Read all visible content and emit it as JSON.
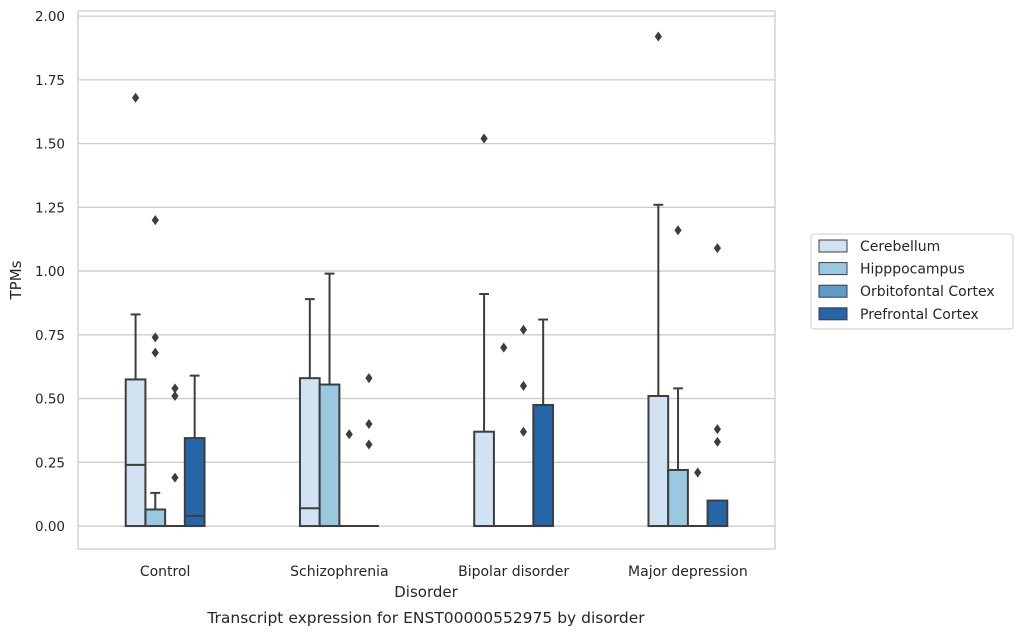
{
  "chart_data": {
    "type": "box",
    "title": "Transcript expression for ENST00000552975 by disorder",
    "xlabel": "Disorder",
    "ylabel": "TPMs",
    "ylim": [
      -0.09,
      2.02
    ],
    "yticks": [
      0.0,
      0.25,
      0.5,
      0.75,
      1.0,
      1.25,
      1.5,
      1.75,
      2.0
    ],
    "ytick_labels": [
      "0.00",
      "0.25",
      "0.50",
      "0.75",
      "1.00",
      "1.25",
      "1.50",
      "1.75",
      "2.00"
    ],
    "grid": "horizontal",
    "legend_position": "right",
    "categories": [
      "Control",
      "Schizophrenia",
      "Bipolar disorder",
      "Major depression"
    ],
    "series": [
      {
        "name": "Cerebellum",
        "color": "#d1e2f2",
        "boxes": [
          {
            "q1": 0.0,
            "median": 0.24,
            "q3": 0.575,
            "whisker_low": 0.0,
            "whisker_high": 0.83,
            "outliers": [
              1.68
            ]
          },
          {
            "q1": 0.0,
            "median": 0.07,
            "q3": 0.58,
            "whisker_low": 0.0,
            "whisker_high": 0.89,
            "outliers": []
          },
          {
            "q1": 0.0,
            "median": 0.0,
            "q3": 0.37,
            "whisker_low": 0.0,
            "whisker_high": 0.91,
            "outliers": [
              1.52
            ]
          },
          {
            "q1": 0.0,
            "median": 0.0,
            "q3": 0.51,
            "whisker_low": 0.0,
            "whisker_high": 1.26,
            "outliers": [
              1.92
            ]
          }
        ]
      },
      {
        "name": "Hipppocampus",
        "color": "#9ac8e0",
        "boxes": [
          {
            "q1": 0.0,
            "median": 0.0,
            "q3": 0.065,
            "whisker_low": 0.0,
            "whisker_high": 0.13,
            "outliers": [
              0.68,
              0.74,
              1.2
            ]
          },
          {
            "q1": 0.0,
            "median": 0.0,
            "q3": 0.555,
            "whisker_low": 0.0,
            "whisker_high": 0.99,
            "outliers": []
          },
          {
            "q1": 0.0,
            "median": 0.0,
            "q3": 0.0,
            "whisker_low": 0.0,
            "whisker_high": 0.0,
            "outliers": [
              0.7
            ]
          },
          {
            "q1": 0.0,
            "median": 0.0,
            "q3": 0.22,
            "whisker_low": 0.0,
            "whisker_high": 0.54,
            "outliers": [
              1.16
            ]
          }
        ]
      },
      {
        "name": "Orbitofontal Cortex",
        "color": "#5b9cc9",
        "boxes": [
          {
            "q1": 0.0,
            "median": 0.0,
            "q3": 0.0,
            "whisker_low": 0.0,
            "whisker_high": 0.0,
            "outliers": [
              0.19,
              0.51,
              0.54
            ]
          },
          {
            "q1": 0.0,
            "median": 0.0,
            "q3": 0.0,
            "whisker_low": 0.0,
            "whisker_high": 0.0,
            "outliers": [
              0.36
            ]
          },
          {
            "q1": 0.0,
            "median": 0.0,
            "q3": 0.0,
            "whisker_low": 0.0,
            "whisker_high": 0.0,
            "outliers": [
              0.37,
              0.55,
              0.77
            ]
          },
          {
            "q1": 0.0,
            "median": 0.0,
            "q3": 0.0,
            "whisker_low": 0.0,
            "whisker_high": 0.0,
            "outliers": [
              0.21
            ]
          }
        ]
      },
      {
        "name": "Prefrontal Cortex",
        "color": "#2566a8",
        "boxes": [
          {
            "q1": 0.0,
            "median": 0.04,
            "q3": 0.345,
            "whisker_low": 0.0,
            "whisker_high": 0.59,
            "outliers": []
          },
          {
            "q1": 0.0,
            "median": 0.0,
            "q3": 0.0,
            "whisker_low": 0.0,
            "whisker_high": 0.0,
            "outliers": [
              0.32,
              0.4,
              0.58
            ]
          },
          {
            "q1": 0.0,
            "median": 0.0,
            "q3": 0.475,
            "whisker_low": 0.0,
            "whisker_high": 0.81,
            "outliers": []
          },
          {
            "q1": 0.0,
            "median": 0.0,
            "q3": 0.1,
            "whisker_low": 0.0,
            "whisker_high": 0.1,
            "outliers": [
              0.33,
              0.38,
              1.09
            ]
          }
        ]
      }
    ]
  }
}
